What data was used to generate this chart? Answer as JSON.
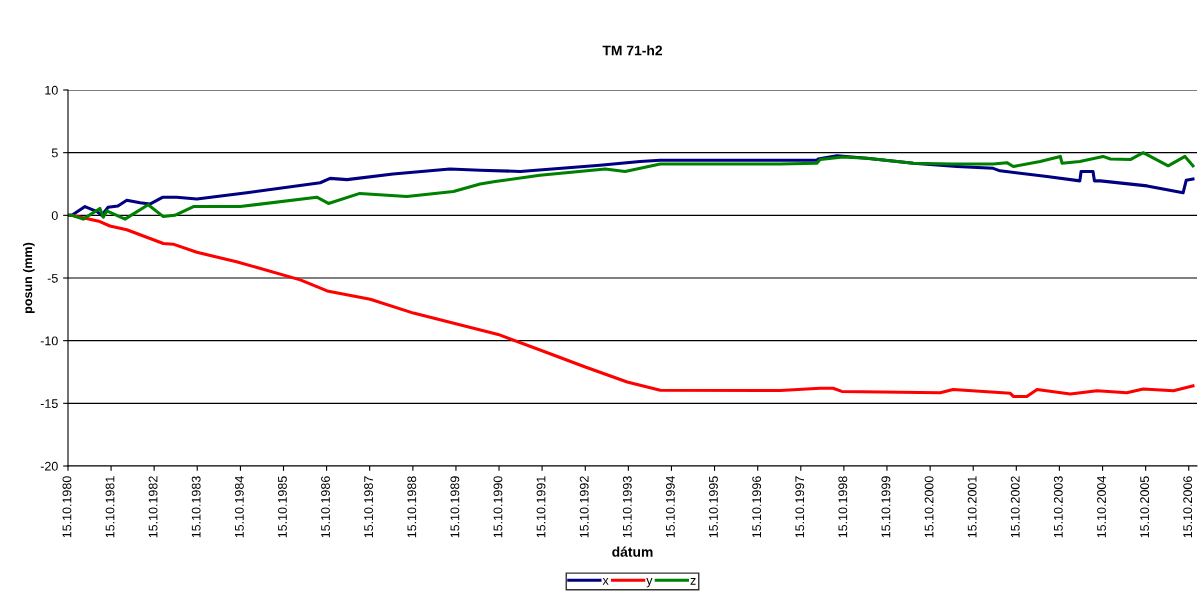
{
  "chart_data": {
    "type": "line",
    "title": "TM 71-h2",
    "xlabel": "dátum",
    "ylabel": "posun (mm)",
    "xlim": [
      "1980-10-15",
      "2006-12-24"
    ],
    "ylim": [
      -20,
      10
    ],
    "yticks": [
      -20,
      -15,
      -10,
      -5,
      0,
      5,
      10
    ],
    "xticks": [
      {
        "value": "1980-10-15",
        "label": "15.10.1980"
      },
      {
        "value": "1981-10-15",
        "label": "15.10.1981"
      },
      {
        "value": "1982-10-15",
        "label": "15.10.1982"
      },
      {
        "value": "1983-10-15",
        "label": "15.10.1983"
      },
      {
        "value": "1984-10-15",
        "label": "15.10.1984"
      },
      {
        "value": "1985-10-15",
        "label": "15.10.1985"
      },
      {
        "value": "1986-10-15",
        "label": "15.10.1986"
      },
      {
        "value": "1987-10-15",
        "label": "15.10.1987"
      },
      {
        "value": "1988-10-15",
        "label": "15.10.1988"
      },
      {
        "value": "1989-10-15",
        "label": "15.10.1989"
      },
      {
        "value": "1990-10-15",
        "label": "15.10.1990"
      },
      {
        "value": "1991-10-15",
        "label": "15.10.1991"
      },
      {
        "value": "1992-10-15",
        "label": "15.10.1992"
      },
      {
        "value": "1993-10-15",
        "label": "15.10.1993"
      },
      {
        "value": "1994-10-15",
        "label": "15.10.1994"
      },
      {
        "value": "1995-10-15",
        "label": "15.10.1995"
      },
      {
        "value": "1996-10-15",
        "label": "15.10.1996"
      },
      {
        "value": "1997-10-15",
        "label": "15.10.1997"
      },
      {
        "value": "1998-10-15",
        "label": "15.10.1998"
      },
      {
        "value": "1999-10-15",
        "label": "15.10.1999"
      },
      {
        "value": "2000-10-15",
        "label": "15.10.2000"
      },
      {
        "value": "2001-10-15",
        "label": "15.10.2001"
      },
      {
        "value": "2002-10-15",
        "label": "15.10.2002"
      },
      {
        "value": "2003-10-15",
        "label": "15.10.2003"
      },
      {
        "value": "2004-10-15",
        "label": "15.10.2004"
      },
      {
        "value": "2005-10-15",
        "label": "15.10.2005"
      },
      {
        "value": "2006-10-15",
        "label": "15.10.2006"
      }
    ],
    "grid": "y",
    "legend": "bottom",
    "marker": "none",
    "line_style": "solid",
    "series": [
      {
        "name": "x",
        "color": "#000080",
        "x": [
          "1980-10-15",
          "1980-11-17",
          "1981-03-08",
          "1981-06-18",
          "1981-07-27",
          "1981-09-20",
          "1981-12-12",
          "1982-02-25",
          "1982-06-18",
          "1982-09-09",
          "1982-12-28",
          "1983-04-23",
          "1983-10-12",
          "1984-12-08",
          "1986-08-22",
          "1986-11-14",
          "1987-04-06",
          "1988-04-30",
          "1989-08-25",
          "1990-05-08",
          "1991-04-12",
          "1993-02-17",
          "1994-01-22",
          "1994-07-12",
          "1998-02-28",
          "1998-03-10",
          "1998-08-18",
          "1999-04-27",
          "2000-05-26",
          "2001-05-30",
          "2002-04-02",
          "2002-05-30",
          "2003-07-02",
          "2004-04-05",
          "2004-04-16",
          "2004-07-26",
          "2004-08-07",
          "2004-09-27",
          "2005-10-27",
          "2006-08-28",
          "2006-09-24",
          "2006-11-20"
        ],
        "values": [
          0,
          0,
          0.7,
          0.3,
          0,
          0.65,
          0.75,
          1.2,
          1.0,
          0.9,
          1.45,
          1.45,
          1.3,
          1.8,
          2.6,
          2.95,
          2.85,
          3.3,
          3.7,
          3.6,
          3.5,
          4.0,
          4.3,
          4.4,
          4.4,
          4.5,
          4.75,
          4.55,
          4.15,
          3.9,
          3.75,
          3.55,
          3.1,
          2.75,
          3.5,
          3.5,
          2.75,
          2.75,
          2.35,
          1.8,
          2.8,
          2.9
        ]
      },
      {
        "name": "y",
        "color": "#ff0000",
        "x": [
          "1980-10-15",
          "1980-11-17",
          "1981-07-12",
          "1981-10-05",
          "1982-02-25",
          "1983-01-01",
          "1983-03-25",
          "1983-10-12",
          "1984-09-12",
          "1986-03-06",
          "1986-10-20",
          "1987-10-20",
          "1988-10-20",
          "1990-10-08",
          "1991-10-15",
          "1992-10-15",
          "1993-10-05",
          "1994-07-12",
          "1997-04-23",
          "1998-03-28",
          "1998-07-16",
          "1998-09-27",
          "2001-01-08",
          "2001-04-27",
          "2002-08-25",
          "2002-09-20",
          "2003-01-12",
          "2003-04-09",
          "2004-01-15",
          "2004-08-29",
          "2005-05-08",
          "2005-09-24",
          "2006-06-07",
          "2006-11-20"
        ],
        "values": [
          0,
          0,
          -0.5,
          -0.85,
          -1.15,
          -2.25,
          -2.3,
          -2.95,
          -3.7,
          -5.15,
          -6.03,
          -6.7,
          -7.8,
          -9.5,
          -10.8,
          -12.1,
          -13.3,
          -13.95,
          -13.98,
          -13.8,
          -13.8,
          -14.05,
          -14.15,
          -13.9,
          -14.2,
          -14.45,
          -14.45,
          -13.9,
          -14.25,
          -14.0,
          -14.15,
          -13.85,
          -14.0,
          -13.6
        ]
      },
      {
        "name": "z",
        "color": "#008000",
        "x": [
          "1980-10-15",
          "1980-11-17",
          "1981-02-21",
          "1981-07-12",
          "1981-08-10",
          "1981-09-09",
          "1982-02-10",
          "1982-08-25",
          "1983-01-01",
          "1983-04-08",
          "1983-09-13",
          "1984-10-12",
          "1986-07-24",
          "1986-10-31",
          "1987-07-24",
          "1988-08-25",
          "1989-09-24",
          "1990-05-08",
          "1990-09-13",
          "1991-09-27",
          "1993-04-02",
          "1993-09-17",
          "1994-07-12",
          "1997-04-23",
          "1998-02-28",
          "1998-03-28",
          "1998-10-08",
          "1999-04-27",
          "2000-05-26",
          "2001-04-27",
          "2002-04-02",
          "2002-07-27",
          "2002-09-20",
          "2003-05-05",
          "2003-10-23",
          "2003-11-07",
          "2004-04-05",
          "2004-10-19",
          "2004-12-20",
          "2005-06-07",
          "2005-09-24",
          "2006-04-24",
          "2006-09-13",
          "2006-11-20"
        ],
        "values": [
          0,
          0,
          -0.3,
          0.55,
          -0.15,
          0.35,
          -0.3,
          0.85,
          -0.1,
          0,
          0.7,
          0.7,
          1.45,
          0.95,
          1.75,
          1.5,
          1.9,
          2.5,
          2.7,
          3.2,
          3.7,
          3.5,
          4.1,
          4.1,
          4.15,
          4.45,
          4.65,
          4.55,
          4.15,
          4.1,
          4.1,
          4.2,
          3.9,
          4.3,
          4.7,
          4.15,
          4.3,
          4.7,
          4.5,
          4.45,
          5.0,
          3.95,
          4.7,
          3.95
        ]
      }
    ]
  }
}
